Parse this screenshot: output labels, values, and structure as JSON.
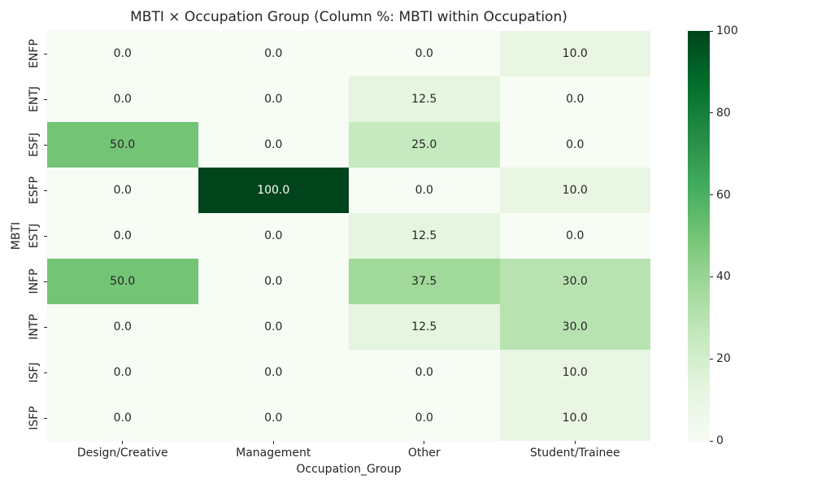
{
  "figure": {
    "background": "#ffffff"
  },
  "chart_data": {
    "type": "heatmap",
    "title": "MBTI × Occupation Group (Column %: MBTI within Occupation)",
    "xlabel": "Occupation_Group",
    "ylabel": "MBTI",
    "columns": [
      "Design/Creative",
      "Management",
      "Other",
      "Student/Trainee"
    ],
    "rows": [
      "ENFP",
      "ENTJ",
      "ESFJ",
      "ESFP",
      "ESTJ",
      "INFP",
      "INTP",
      "ISFJ",
      "ISFP"
    ],
    "values": [
      [
        0.0,
        0.0,
        0.0,
        10.0
      ],
      [
        0.0,
        0.0,
        12.5,
        0.0
      ],
      [
        50.0,
        0.0,
        25.0,
        0.0
      ],
      [
        0.0,
        100.0,
        0.0,
        10.0
      ],
      [
        0.0,
        0.0,
        12.5,
        0.0
      ],
      [
        50.0,
        0.0,
        37.5,
        30.0
      ],
      [
        0.0,
        0.0,
        12.5,
        30.0
      ],
      [
        0.0,
        0.0,
        0.0,
        10.0
      ],
      [
        0.0,
        0.0,
        0.0,
        10.0
      ]
    ],
    "value_decimals": 1,
    "colormap": "Greens",
    "vmin": 0,
    "vmax": 100,
    "colorbar_ticks": [
      0,
      20,
      40,
      60,
      80,
      100
    ],
    "colors": {
      "low": "#f7fcf5",
      "high": "#00441b",
      "annot_dark": "#262626",
      "annot_light": "#ffffff"
    },
    "legend_position": "right-colorbar",
    "grid": false
  }
}
